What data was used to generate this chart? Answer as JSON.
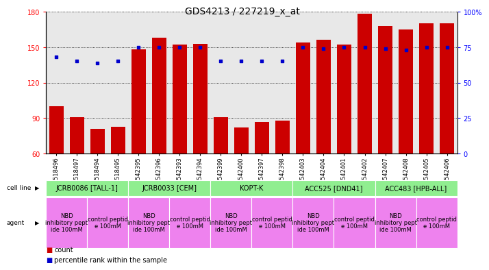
{
  "title": "GDS4213 / 227219_x_at",
  "samples": [
    "GSM518496",
    "GSM518497",
    "GSM518494",
    "GSM518495",
    "GSM542395",
    "GSM542396",
    "GSM542393",
    "GSM542394",
    "GSM542399",
    "GSM542400",
    "GSM542397",
    "GSM542398",
    "GSM542403",
    "GSM542404",
    "GSM542401",
    "GSM542402",
    "GSM542407",
    "GSM542408",
    "GSM542405",
    "GSM542406"
  ],
  "counts": [
    100,
    91,
    81,
    83,
    148,
    158,
    152,
    153,
    91,
    82,
    87,
    88,
    154,
    156,
    152,
    178,
    168,
    165,
    170,
    170
  ],
  "percentile_ranks": [
    68,
    65,
    64,
    65,
    75,
    75,
    75,
    75,
    65,
    65,
    65,
    65,
    75,
    74,
    75,
    75,
    74,
    73,
    75,
    75
  ],
  "cell_lines": [
    {
      "label": "JCRB0086 [TALL-1]",
      "start": 0,
      "end": 4,
      "color": "#90EE90"
    },
    {
      "label": "JCRB0033 [CEM]",
      "start": 4,
      "end": 8,
      "color": "#90EE90"
    },
    {
      "label": "KOPT-K",
      "start": 8,
      "end": 12,
      "color": "#90EE90"
    },
    {
      "label": "ACC525 [DND41]",
      "start": 12,
      "end": 16,
      "color": "#90EE90"
    },
    {
      "label": "ACC483 [HPB-ALL]",
      "start": 16,
      "end": 20,
      "color": "#90EE90"
    }
  ],
  "agents": [
    {
      "label": "NBD\ninhibitory pept\nide 100mM",
      "start": 0,
      "end": 2,
      "color": "#EE82EE"
    },
    {
      "label": "control peptid\ne 100mM",
      "start": 2,
      "end": 4,
      "color": "#EE82EE"
    },
    {
      "label": "NBD\ninhibitory pept\nide 100mM",
      "start": 4,
      "end": 6,
      "color": "#EE82EE"
    },
    {
      "label": "control peptid\ne 100mM",
      "start": 6,
      "end": 8,
      "color": "#EE82EE"
    },
    {
      "label": "NBD\ninhibitory pept\nide 100mM",
      "start": 8,
      "end": 10,
      "color": "#EE82EE"
    },
    {
      "label": "control peptid\ne 100mM",
      "start": 10,
      "end": 12,
      "color": "#EE82EE"
    },
    {
      "label": "NBD\ninhibitory pept\nide 100mM",
      "start": 12,
      "end": 14,
      "color": "#EE82EE"
    },
    {
      "label": "control peptid\ne 100mM",
      "start": 14,
      "end": 16,
      "color": "#EE82EE"
    },
    {
      "label": "NBD\ninhibitory pept\nide 100mM",
      "start": 16,
      "end": 18,
      "color": "#EE82EE"
    },
    {
      "label": "control peptid\ne 100mM",
      "start": 18,
      "end": 20,
      "color": "#EE82EE"
    }
  ],
  "ylim_left": [
    60,
    180
  ],
  "ylim_right": [
    0,
    100
  ],
  "yticks_left": [
    60,
    90,
    120,
    150,
    180
  ],
  "yticks_right": [
    0,
    25,
    50,
    75,
    100
  ],
  "bar_color": "#CC0000",
  "dot_color": "#0000CC",
  "background_color": "#ffffff",
  "title_fontsize": 10,
  "tick_fontsize": 6,
  "legend_fontsize": 7,
  "cell_line_fontsize": 7,
  "agent_fontsize": 6
}
